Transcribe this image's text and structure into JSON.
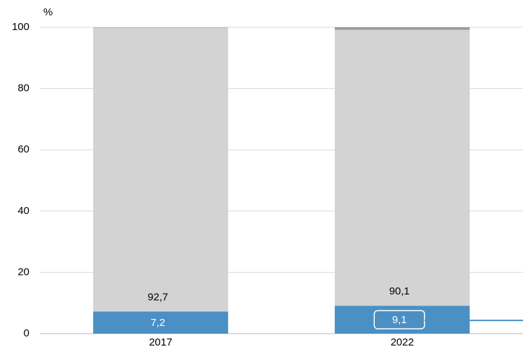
{
  "chart_data": {
    "type": "stacked_bar",
    "y_axis_label": "%",
    "categories": [
      "2017",
      "2022"
    ],
    "series": [
      {
        "color": "#4a90c4",
        "values": [
          7.2,
          9.1
        ],
        "value_labels": [
          "7,2",
          "9,1"
        ],
        "label_color": "#ffffff"
      },
      {
        "color": "#d3d3d3",
        "values": [
          92.7,
          90.1
        ],
        "value_labels": [
          "92,7",
          "90,1"
        ],
        "label_color": "#000000"
      },
      {
        "color": "#999999",
        "values": [
          0.1,
          0.8
        ]
      }
    ],
    "ylim": [
      0,
      100
    ],
    "yticks": [
      0,
      20,
      40,
      60,
      80,
      100
    ],
    "grid": true
  }
}
